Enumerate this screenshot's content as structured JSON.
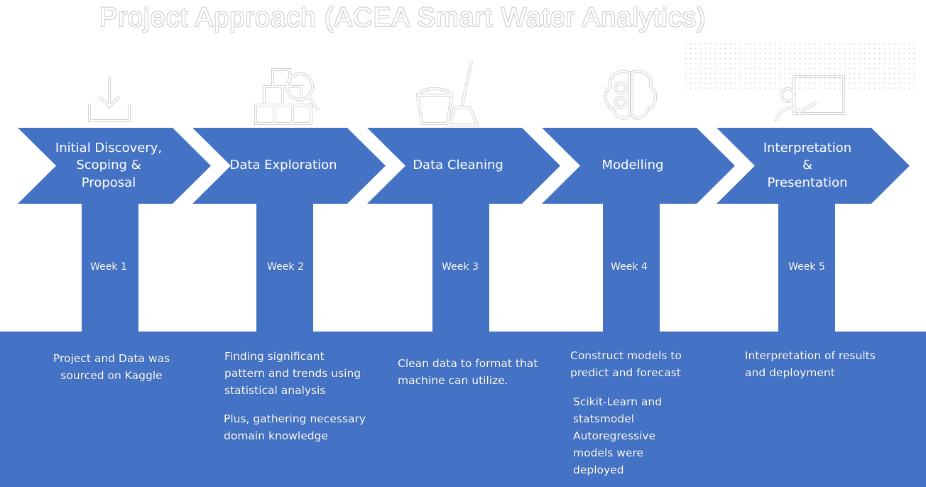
{
  "title": "Project Approach  (ACEA Smart Water Analytics)",
  "colors": {
    "accent": "#4472c4",
    "text_on_accent": "#ffffff",
    "icon_stroke": "#ffffff",
    "icon_outline": "#555555"
  },
  "steps": [
    {
      "label": "Initial Discovery,\nScoping &\nProposal",
      "week": "Week 1",
      "icon": "download-icon",
      "description": [
        "Project and Data was\nsourced on Kaggle"
      ]
    },
    {
      "label": "Data Exploration",
      "week": "Week 2",
      "icon": "boxes-magnifier-icon",
      "description": [
        "Finding significant\npattern and trends using\nstatistical analysis",
        "Plus, gathering necessary\ndomain knowledge"
      ]
    },
    {
      "label": "Data Cleaning",
      "week": "Week 3",
      "icon": "bucket-mop-icon",
      "description": [
        "Clean data to format that\nmachine can utilize."
      ]
    },
    {
      "label": "Modelling",
      "week": "Week 4",
      "icon": "brain-gears-icon",
      "description": [
        "Construct models to\npredict and forecast",
        "Scikit-Learn and\nstatsmodel\nAutoregressive\nmodels were\ndeployed"
      ]
    },
    {
      "label": "Interpretation\n&\nPresentation",
      "week": "Week 5",
      "icon": "presenter-board-icon",
      "description": [
        "Interpretation of results\nand deployment"
      ]
    }
  ]
}
